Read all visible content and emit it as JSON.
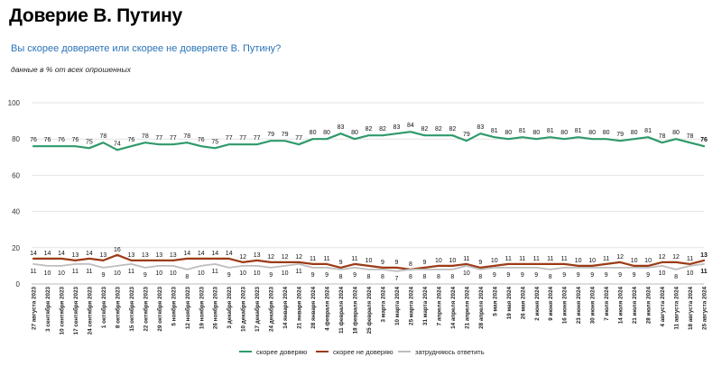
{
  "header": {
    "title": "Доверие В. Путину",
    "question": "Вы скорее доверяете или скорее не доверяете В. Путину?",
    "note": "данные в % от всех опрошенных"
  },
  "chart_data": {
    "type": "line",
    "ylim": [
      0,
      100
    ],
    "yticks": [
      "0",
      "20",
      "40",
      "60",
      "80",
      "100"
    ],
    "grid": true,
    "legend_position": "bottom",
    "categories": [
      "27 августа 2023",
      "3 сентября 2023",
      "10 сентября 2023",
      "17 сентября 2023",
      "24 сентября 2023",
      "1 октября 2023",
      "8 октября 2023",
      "15 октября 2023",
      "22 октября 2023",
      "29 октября 2023",
      "5 ноября 2023",
      "12 ноября 2023",
      "19 ноября 2023",
      "26 ноября 2023",
      "3 декабря 2023",
      "10 декабря 2023",
      "17 декабря 2023",
      "24 декабря 2023",
      "14 января 2024",
      "21 января 2024",
      "28 января 2024",
      "4 февраля 2024",
      "11 февраля 2024",
      "18 февраля 2024",
      "25 февраля 2024",
      "3 марта 2024",
      "10 марта 2024",
      "25 марта 2024",
      "31 марта 2024",
      "7 апреля 2024",
      "14 апреля 2024",
      "21 апреля 2024",
      "28 апреля 2024",
      "5 мая 2024",
      "19 мая 2024",
      "26 мая 2024",
      "2 июня 2024",
      "9 июня 2024",
      "16 июня 2024",
      "23 июня 2024",
      "30 июня 2024",
      "7 июля 2024",
      "14 июля 2024",
      "21 июля 2024",
      "28 июля 2024",
      "4 августа 2024",
      "11 августа 2024",
      "18 августа 2024",
      "25 августа 2024"
    ],
    "series": [
      {
        "name": "скорее доверяю",
        "color": "#2f9a6a",
        "values": [
          76,
          76,
          76,
          76,
          75,
          78,
          74,
          76,
          78,
          77,
          77,
          78,
          76,
          75,
          77,
          77,
          77,
          79,
          79,
          77,
          80,
          80,
          83,
          80,
          82,
          82,
          83,
          84,
          82,
          82,
          82,
          79,
          83,
          81,
          80,
          81,
          80,
          81,
          80,
          81,
          80,
          80,
          79,
          80,
          81,
          78,
          80,
          78,
          76
        ]
      },
      {
        "name": "скорее не доверяю",
        "color": "#9c3b16",
        "values": [
          14,
          14,
          14,
          13,
          14,
          13,
          16,
          13,
          13,
          13,
          13,
          14,
          14,
          14,
          14,
          12,
          13,
          12,
          12,
          12,
          11,
          11,
          9,
          11,
          10,
          9,
          9,
          8,
          9,
          10,
          10,
          11,
          9,
          10,
          11,
          11,
          11,
          11,
          11,
          10,
          10,
          11,
          12,
          10,
          10,
          12,
          12,
          11,
          13
        ]
      },
      {
        "name": "затрудняюсь ответить",
        "color": "#bdbdbd",
        "values": [
          11,
          10,
          10,
          11,
          11,
          9,
          10,
          11,
          9,
          10,
          10,
          8,
          10,
          11,
          9,
          10,
          10,
          9,
          10,
          11,
          9,
          9,
          8,
          9,
          8,
          8,
          7,
          8,
          8,
          8,
          8,
          10,
          8,
          9,
          9,
          9,
          9,
          8,
          9,
          9,
          9,
          9,
          9,
          9,
          9,
          10,
          8,
          10,
          11
        ]
      }
    ]
  }
}
